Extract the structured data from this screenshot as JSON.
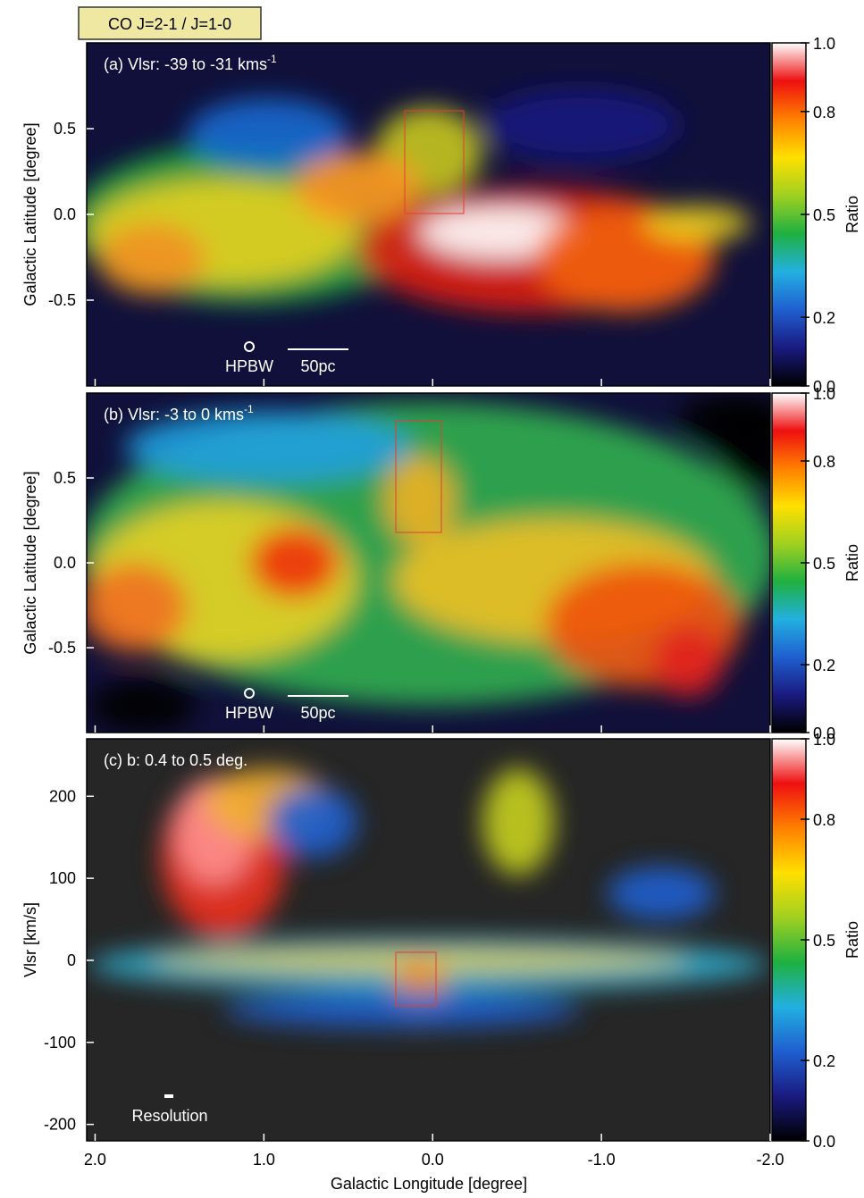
{
  "label_box": "CO J=2-1 / J=1-0",
  "x_label": "Galactic Longitude [degree]",
  "chart_data": [
    {
      "type": "heatmap",
      "title": "(a) Vlsr: -39 to -31 kms",
      "title_superscript": "-1",
      "y_label": "Galactic Latitude [degree]",
      "ylim": [
        -1.0,
        1.0
      ],
      "yticks": [
        -0.5,
        {
          "value": 0,
          "label": "0.0"
        },
        0.5
      ],
      "beam_label": "HPBW",
      "scale_label": "50pc",
      "colorbar": {
        "label": "Ratio",
        "clim": [
          0,
          1
        ],
        "ticks": [
          {
            "value": 0,
            "label": "0.0"
          },
          0.2,
          0.5,
          0.8,
          {
            "value": 1,
            "label": "1.0"
          }
        ],
        "colors": [
          "#000000",
          "#1a1a80",
          "#1f5fd0",
          "#22b0e0",
          "#1fb040",
          "#a0d020",
          "#ffe000",
          "#ff8000",
          "#ee1010",
          "#ffffff"
        ]
      }
    },
    {
      "type": "heatmap",
      "title": "(b) Vlsr: -3 to 0 kms",
      "title_superscript": "-1",
      "y_label": "Galactic Latitude [degree]",
      "ylim": [
        -1.0,
        1.0
      ],
      "yticks": [
        -0.5,
        {
          "value": 0,
          "label": "0.0"
        },
        0.5
      ],
      "beam_label": "HPBW",
      "scale_label": "50pc",
      "colorbar": {
        "label": "Ratio",
        "clim": [
          0,
          1
        ],
        "ticks": [
          {
            "value": 0,
            "label": "0.0"
          },
          0.2,
          0.5,
          0.8,
          {
            "value": 1,
            "label": "1.0"
          }
        ],
        "colors": [
          "#000000",
          "#1a1a80",
          "#1f5fd0",
          "#22b0e0",
          "#1fb040",
          "#a0d020",
          "#ffe000",
          "#ff8000",
          "#ee1010",
          "#ffffff"
        ]
      }
    },
    {
      "type": "heatmap",
      "title": "(c) b: 0.4 to 0.5 deg.",
      "y_label": "Vlsr [km/s]",
      "xlim": [
        2.05,
        -2.0
      ],
      "xticks": [
        {
          "value": 2,
          "label": "2.0"
        },
        {
          "value": 1,
          "label": "1.0"
        },
        {
          "value": 0,
          "label": "0.0"
        },
        {
          "value": -1,
          "label": "-1.0"
        },
        {
          "value": -2,
          "label": "-2.0"
        }
      ],
      "ylim": [
        -220,
        270
      ],
      "yticks": [
        -200,
        -100,
        0,
        100,
        200
      ],
      "resolution_label": "Resolution",
      "colorbar": {
        "label": "Ratio",
        "clim": [
          0,
          1
        ],
        "ticks": [
          {
            "value": 0,
            "label": "0.0"
          },
          0.2,
          0.5,
          0.8,
          {
            "value": 1,
            "label": "1.0"
          }
        ],
        "colors": [
          "#000000",
          "#1a1a80",
          "#1f5fd0",
          "#22b0e0",
          "#1fb040",
          "#a0d020",
          "#ffe000",
          "#ff8000",
          "#ee1010",
          "#ffffff"
        ]
      }
    }
  ]
}
